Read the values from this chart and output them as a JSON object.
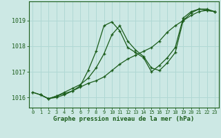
{
  "title": "",
  "xlabel": "Graphe pression niveau de la mer (hPa)",
  "bg_color": "#cce8e4",
  "grid_color": "#b0d8d4",
  "line_color": "#1a5c1a",
  "series": [
    {
      "x": [
        0,
        1,
        2,
        3,
        4,
        5,
        6,
        7,
        8,
        9,
        10,
        11,
        12,
        13,
        14,
        15,
        16,
        17,
        18,
        19,
        20,
        21,
        22,
        23
      ],
      "y": [
        1016.2,
        1016.1,
        1015.95,
        1016.05,
        1016.15,
        1016.25,
        1016.4,
        1016.55,
        1016.65,
        1016.8,
        1017.05,
        1017.3,
        1017.5,
        1017.65,
        1017.8,
        1017.95,
        1018.2,
        1018.55,
        1018.8,
        1019.0,
        1019.2,
        1019.35,
        1019.4,
        1019.35
      ]
    },
    {
      "x": [
        0,
        1,
        2,
        3,
        4,
        5,
        6,
        7,
        8,
        9,
        10,
        11,
        12,
        13,
        14,
        15,
        16,
        17,
        18,
        19,
        20,
        21,
        22,
        23
      ],
      "y": [
        1016.2,
        1016.1,
        1015.95,
        1016.05,
        1016.2,
        1016.35,
        1016.5,
        1016.75,
        1017.15,
        1017.7,
        1018.45,
        1018.8,
        1018.2,
        1017.85,
        1017.6,
        1017.15,
        1017.05,
        1017.35,
        1017.75,
        1019.0,
        1019.3,
        1019.45,
        1019.45,
        1019.35
      ]
    },
    {
      "x": [
        1,
        2,
        3,
        4,
        5,
        6,
        7,
        8,
        9,
        10,
        11,
        12,
        13,
        14,
        15,
        16,
        17,
        18,
        19,
        20,
        21,
        22,
        23
      ],
      "y": [
        1016.1,
        1015.95,
        1016.0,
        1016.1,
        1016.25,
        1016.45,
        1017.05,
        1017.8,
        1018.8,
        1018.95,
        1018.6,
        1017.95,
        1017.75,
        1017.55,
        1017.0,
        1017.25,
        1017.55,
        1017.95,
        1019.1,
        1019.35,
        1019.45,
        1019.4,
        1019.35
      ]
    }
  ],
  "xlim": [
    -0.5,
    23.5
  ],
  "ylim": [
    1015.6,
    1019.75
  ],
  "yticks": [
    1016,
    1017,
    1018,
    1019
  ],
  "xticks": [
    0,
    1,
    2,
    3,
    4,
    5,
    6,
    7,
    8,
    9,
    10,
    11,
    12,
    13,
    14,
    15,
    16,
    17,
    18,
    19,
    20,
    21,
    22,
    23
  ]
}
